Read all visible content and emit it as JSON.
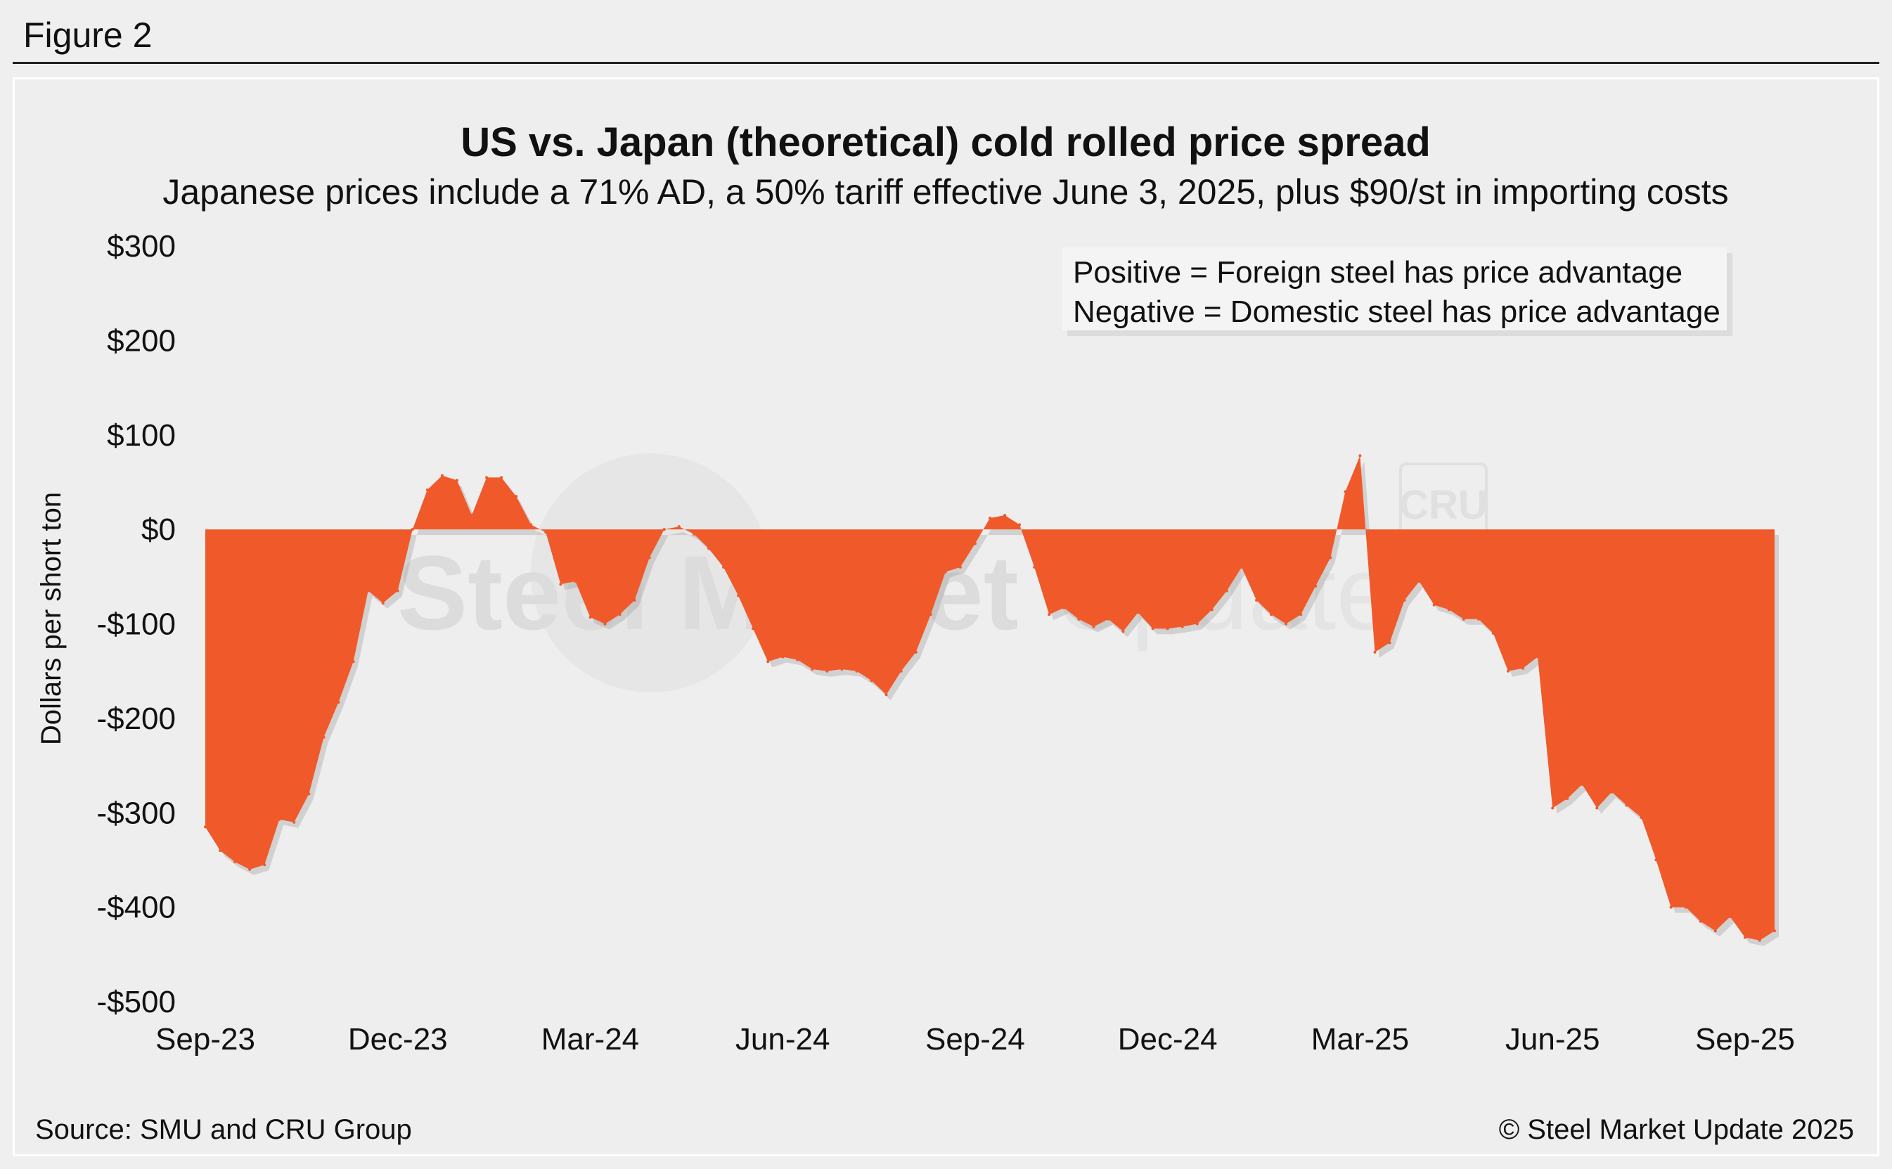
{
  "figure_label": "Figure 2",
  "source": "Source: SMU and CRU Group",
  "copyright": "© Steel Market Update 2025",
  "colors": {
    "area": "#f0592a",
    "background": "#eeeeee",
    "text": "#111111"
  },
  "watermark": {
    "brand_bold": "Steel Market",
    "brand_light": "Update",
    "badge": "CRU"
  },
  "chart_data": {
    "type": "area",
    "title": "US vs. Japan (theoretical) cold rolled price spread",
    "subtitle": "Japanese prices include a 71% AD, a 50% tariff effective June 3, 2025, plus $90/st in importing costs",
    "ylabel": "Dollars per short ton",
    "xlabel": "",
    "ylim": [
      -500,
      300
    ],
    "y_ticks": [
      300,
      200,
      100,
      0,
      -100,
      -200,
      -300,
      -400,
      -500
    ],
    "y_tick_labels": [
      "$300",
      "$200",
      "$100",
      "$0",
      "-$100",
      "-$200",
      "-$300",
      "-$400",
      "-$500"
    ],
    "x_tick_labels": [
      "Sep-23",
      "Dec-23",
      "Mar-24",
      "Jun-24",
      "Sep-24",
      "Dec-24",
      "Mar-25",
      "Jun-25",
      "Sep-25"
    ],
    "x_tick_positions": [
      0,
      13,
      26,
      39,
      52,
      65,
      78,
      91,
      104
    ],
    "grid": false,
    "legend_note": [
      "Positive = Foreign steel has price advantage",
      "Negative = Domestic steel has price advantage"
    ],
    "series": [
      {
        "values": [
          -315,
          -340,
          -352,
          -360,
          -355,
          -307,
          -310,
          -280,
          -220,
          -183,
          -140,
          -65,
          -78,
          -65,
          0,
          42,
          57,
          52,
          15,
          55,
          55,
          35,
          5,
          -3,
          -58,
          -55,
          -93,
          -100,
          -90,
          -75,
          -30,
          0,
          3,
          -5,
          -20,
          -40,
          -70,
          -105,
          -140,
          -135,
          -138,
          -148,
          -150,
          -148,
          -150,
          -160,
          -175,
          -150,
          -130,
          -90,
          -45,
          -40,
          -15,
          12,
          15,
          5,
          -40,
          -90,
          -83,
          -95,
          -103,
          -95,
          -108,
          -88,
          -105,
          -105,
          -103,
          -100,
          -85,
          -65,
          -40,
          -75,
          -90,
          -100,
          -90,
          -60,
          -30,
          40,
          78,
          -130,
          -120,
          -75,
          -55,
          -80,
          -85,
          -95,
          -95,
          -110,
          -150,
          -147,
          -135,
          -295,
          -285,
          -270,
          -295,
          -278,
          -292,
          -305,
          -350,
          -400,
          -400,
          -415,
          -425,
          -410,
          -432,
          -435,
          -425
        ]
      }
    ]
  }
}
